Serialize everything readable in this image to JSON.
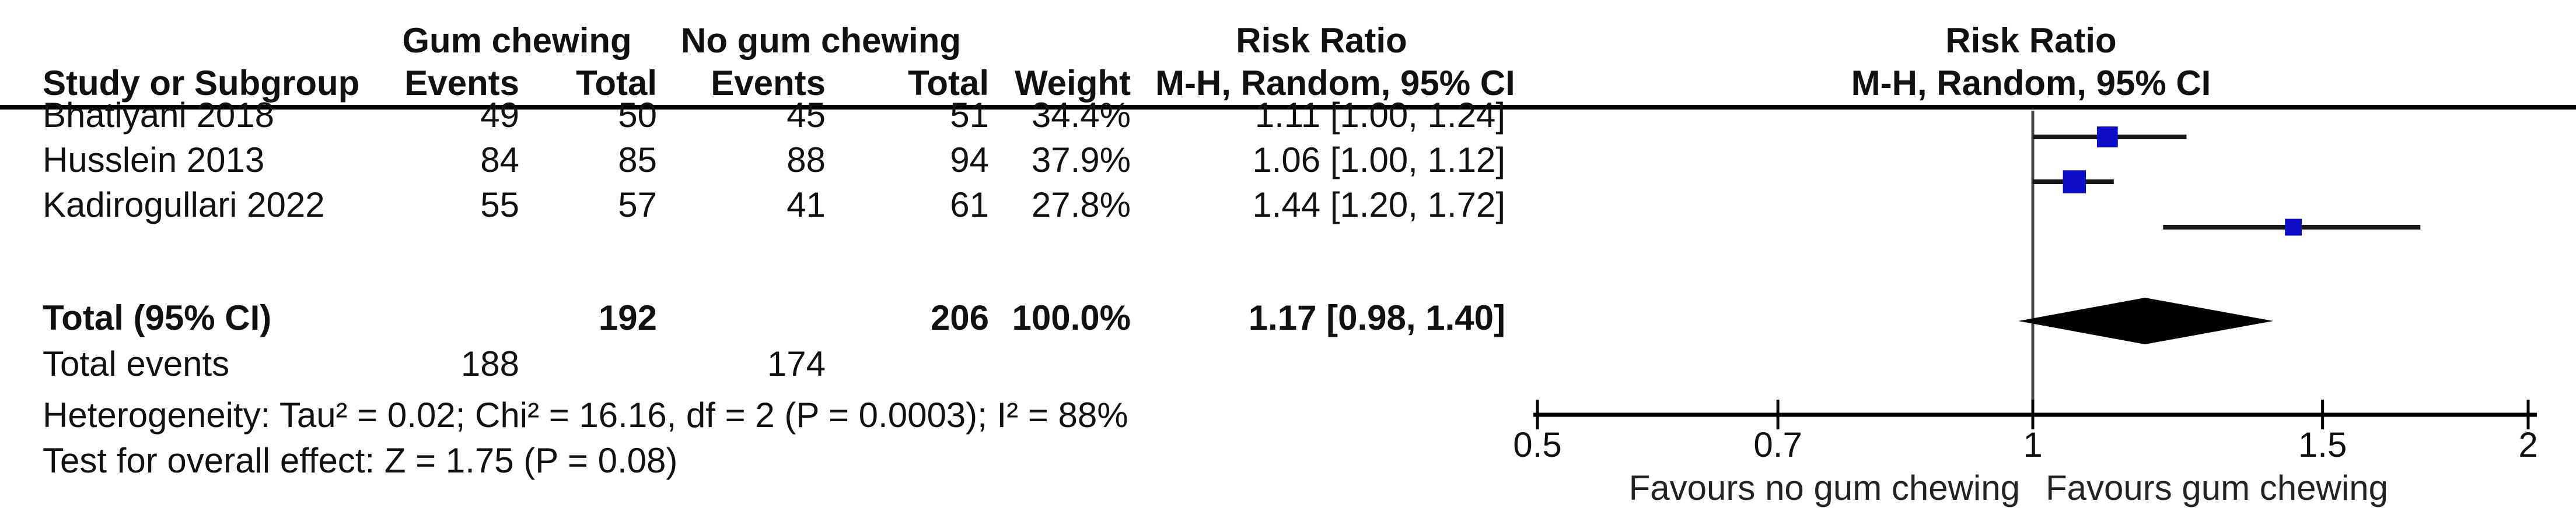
{
  "table": {
    "group_headers": {
      "gum": "Gum chewing",
      "no_gum": "No gum chewing",
      "risk_ratio_text": "Risk Ratio",
      "risk_ratio_plot": "Risk Ratio"
    },
    "col_headers": {
      "study": "Study or Subgroup",
      "events1": "Events",
      "total1": "Total",
      "events2": "Events",
      "total2": "Total",
      "weight": "Weight",
      "ci": "M-H, Random, 95% CI",
      "ci_plot": "M-H, Random, 95% CI"
    },
    "rows": [
      {
        "study": "Bhatiyani 2018",
        "events1": "49",
        "total1": "50",
        "events2": "45",
        "total2": "51",
        "weight": "34.4%",
        "ci": "1.11 [1.00, 1.24]"
      },
      {
        "study": "Husslein 2013",
        "events1": "84",
        "total1": "85",
        "events2": "88",
        "total2": "94",
        "weight": "37.9%",
        "ci": "1.06 [1.00, 1.12]"
      },
      {
        "study": "Kadirogullari 2022",
        "events1": "55",
        "total1": "57",
        "events2": "41",
        "total2": "61",
        "weight": "27.8%",
        "ci": "1.44 [1.20, 1.72]"
      }
    ],
    "total_row": {
      "label": "Total (95% CI)",
      "total1": "192",
      "total2": "206",
      "weight": "100.0%",
      "ci": "1.17 [0.98, 1.40]"
    },
    "total_events": {
      "label": "Total events",
      "events1": "188",
      "events2": "174"
    },
    "heterogeneity": "Heterogeneity: Tau² = 0.02; Chi² = 16.16, df = 2 (P = 0.0003); I² = 88%",
    "overall_effect": "Test for overall effect: Z = 1.75 (P = 0.08)"
  },
  "chart_data": {
    "type": "forest",
    "effect_measure": "Risk Ratio",
    "model": "M-H, Random, 95% CI",
    "x_scale": "log",
    "axis": {
      "min": 0.5,
      "max": 2,
      "ticks": [
        {
          "value": 0.5,
          "label": "0.5"
        },
        {
          "value": 0.7,
          "label": "0.7"
        },
        {
          "value": 1,
          "label": "1"
        },
        {
          "value": 1.5,
          "label": "1.5"
        },
        {
          "value": 2,
          "label": "2"
        }
      ]
    },
    "studies": [
      {
        "name": "Bhatiyani 2018",
        "rr": 1.11,
        "ci_low": 1.0,
        "ci_high": 1.24,
        "weight_pct": 34.4
      },
      {
        "name": "Husslein 2013",
        "rr": 1.06,
        "ci_low": 1.0,
        "ci_high": 1.12,
        "weight_pct": 37.9
      },
      {
        "name": "Kadirogullari 2022",
        "rr": 1.44,
        "ci_low": 1.2,
        "ci_high": 1.72,
        "weight_pct": 27.8
      }
    ],
    "total": {
      "rr": 1.17,
      "ci_low": 0.98,
      "ci_high": 1.4,
      "weight_pct": 100.0
    },
    "footer_labels": {
      "left": "Favours no gum chewing",
      "right": "Favours gum chewing"
    },
    "colors": {
      "marker": "#0d0dc8",
      "ci_line": "#161616",
      "diamond": "#000000",
      "axis": "#000000",
      "no_effect_line": "#444444"
    }
  }
}
